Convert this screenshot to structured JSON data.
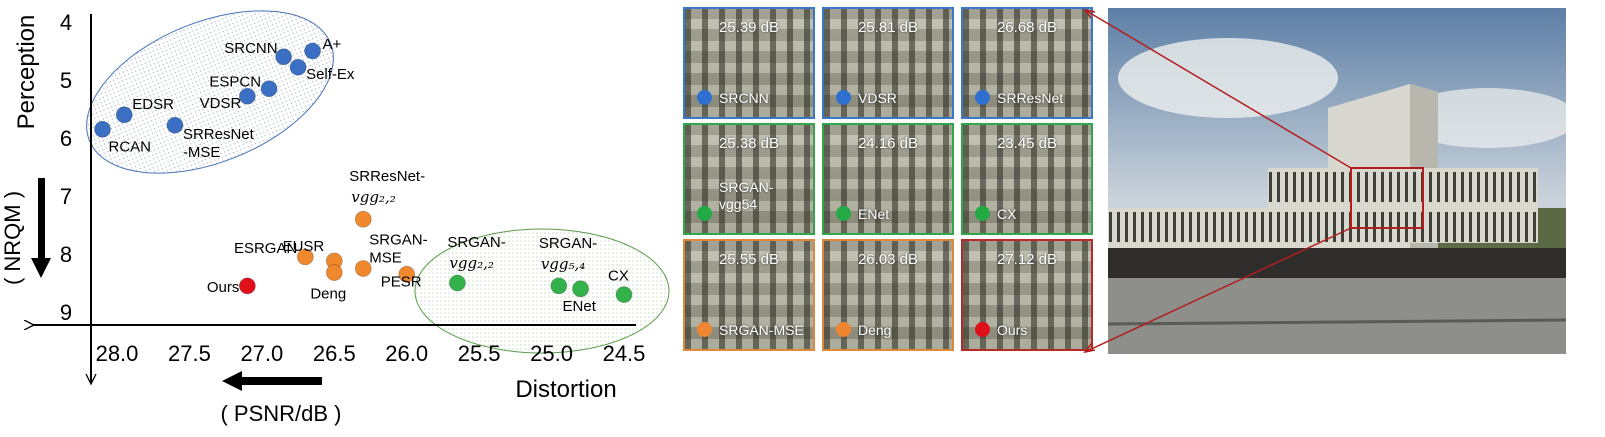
{
  "chart_data": {
    "type": "scatter",
    "xlabel": "Distortion",
    "xunit": "( PSNR/dB )",
    "ylabel": "Perception",
    "yunit": "( NRQM )",
    "x_reversed": true,
    "y_reversed": true,
    "xlim": [
      28.4,
      24.4
    ],
    "ylim": [
      3.8,
      9.1
    ],
    "x_ticks": [
      "28.0",
      "27.5",
      "27.0",
      "26.5",
      "26.0",
      "25.5",
      "25.0",
      "24.5"
    ],
    "y_ticks": [
      "4",
      "5",
      "6",
      "7",
      "8",
      "9"
    ],
    "series_colors": {
      "blue": "#3a6fc4",
      "orange": "#f0882e",
      "green": "#33b24c",
      "red": "#e0101a"
    },
    "points": [
      {
        "label": "A+",
        "x": 26.65,
        "y": 4.5,
        "color": "blue"
      },
      {
        "label": "SRCNN",
        "x": 26.85,
        "y": 4.6,
        "color": "blue"
      },
      {
        "label": "Self-Ex",
        "x": 26.75,
        "y": 4.78,
        "color": "blue"
      },
      {
        "label": "ESPCN",
        "x": 26.95,
        "y": 5.15,
        "color": "blue"
      },
      {
        "label": "VDSR",
        "x": 27.1,
        "y": 5.28,
        "color": "blue"
      },
      {
        "label": "EDSR",
        "x": 27.95,
        "y": 5.6,
        "color": "blue"
      },
      {
        "label": "SRResNet",
        "label2": "-MSE",
        "x": 27.6,
        "y": 5.78,
        "color": "blue"
      },
      {
        "label": "RCAN",
        "x": 28.1,
        "y": 5.85,
        "color": "blue"
      },
      {
        "label": "SRResNet-",
        "math": "vgg₂,₂",
        "x": 26.3,
        "y": 7.4,
        "color": "orange"
      },
      {
        "label": "ESRGAN",
        "x": 26.7,
        "y": 8.05,
        "color": "orange"
      },
      {
        "label": "EUSR",
        "x": 26.5,
        "y": 8.12,
        "color": "orange"
      },
      {
        "label": "Deng",
        "x": 26.5,
        "y": 8.32,
        "color": "orange"
      },
      {
        "label": "SRGAN-",
        "label2": "MSE",
        "x": 26.3,
        "y": 8.25,
        "color": "orange"
      },
      {
        "label": "PESR",
        "x": 26.0,
        "y": 8.35,
        "color": "orange"
      },
      {
        "label": "Ours",
        "x": 27.1,
        "y": 8.55,
        "color": "red"
      },
      {
        "label": "SRGAN-",
        "math": "vgg₂,₂",
        "x": 25.65,
        "y": 8.5,
        "color": "green"
      },
      {
        "label": "SRGAN-",
        "math": "vgg₅,₄",
        "x": 24.95,
        "y": 8.55,
        "color": "green"
      },
      {
        "label": "ENet",
        "x": 24.8,
        "y": 8.6,
        "color": "green"
      },
      {
        "label": "CX",
        "x": 24.5,
        "y": 8.7,
        "color": "green"
      }
    ]
  },
  "crops": [
    {
      "psnr": "25.39 dB",
      "name": "SRCNN",
      "color": "#2f6fd0",
      "frame": "blue"
    },
    {
      "psnr": "25.81 dB",
      "name": "VDSR",
      "color": "#2f6fd0",
      "frame": "blue"
    },
    {
      "psnr": "26.68 dB",
      "name": "SRResNet",
      "color": "#2f6fd0",
      "frame": "blue"
    },
    {
      "psnr": "25.38 dB",
      "name": "SRGAN-",
      "name2": "vgg54",
      "color": "#22aa44",
      "frame": "green"
    },
    {
      "psnr": "24.16 dB",
      "name": "ENet",
      "color": "#22aa44",
      "frame": "green"
    },
    {
      "psnr": "23.45 dB",
      "name": "CX",
      "color": "#22aa44",
      "frame": "green"
    },
    {
      "psnr": "25.55 dB",
      "name": "SRGAN-MSE",
      "color": "#ef8530",
      "frame": "orange"
    },
    {
      "psnr": "26.03 dB",
      "name": "Deng",
      "color": "#ef8530",
      "frame": "orange"
    },
    {
      "psnr": "27.12 dB",
      "name": "Ours",
      "color": "#e0101a",
      "frame": "red"
    }
  ]
}
